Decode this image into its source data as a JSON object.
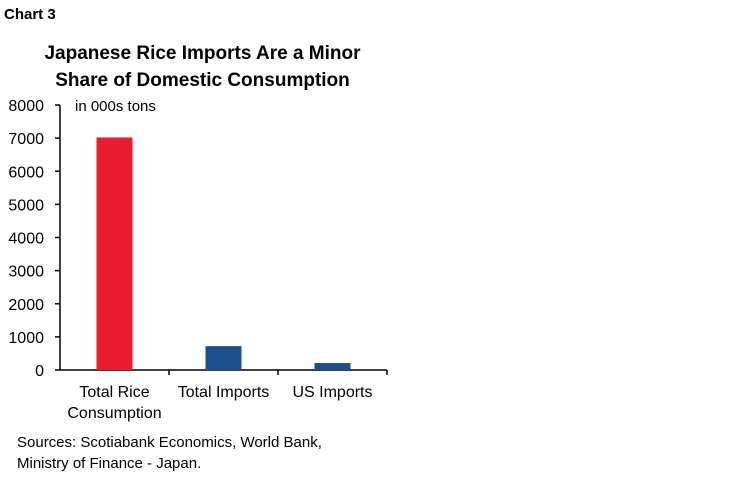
{
  "chart_label": "Chart 3",
  "chart_data": {
    "type": "bar",
    "title_lines": [
      "Japanese Rice Imports Are a Minor",
      "Share of Domestic Consumption"
    ],
    "unit_label": "in 000s tons",
    "categories": [
      [
        "Total Rice",
        "Consumption"
      ],
      [
        "Total Imports"
      ],
      [
        "US Imports"
      ]
    ],
    "values": [
      7020,
      720,
      210
    ],
    "colors": [
      "#ED1B2F",
      "#1F4E8C",
      "#1F4E8C"
    ],
    "ylim": [
      0,
      8000
    ],
    "yticks": [
      0,
      1000,
      2000,
      3000,
      4000,
      5000,
      6000,
      7000,
      8000
    ],
    "grid": false
  },
  "sources": [
    "Sources: Scotiabank Economics, World Bank,",
    "Ministry of Finance - Japan."
  ]
}
